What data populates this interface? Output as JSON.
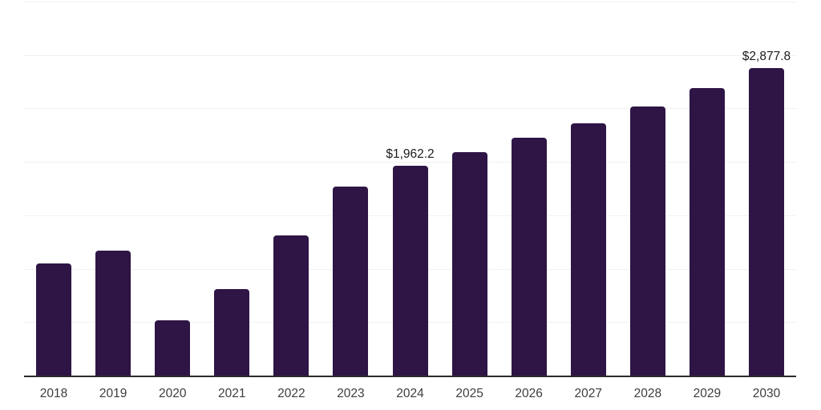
{
  "chart_data": {
    "type": "bar",
    "title": "",
    "xlabel": "",
    "ylabel": "",
    "categories": [
      "2018",
      "2019",
      "2020",
      "2021",
      "2022",
      "2023",
      "2024",
      "2025",
      "2026",
      "2027",
      "2028",
      "2029",
      "2030"
    ],
    "values": [
      1049,
      1170,
      517,
      808,
      1308,
      1771,
      1962.2,
      2088,
      2223,
      2361,
      2518,
      2691,
      2877.8
    ],
    "data_labels": [
      "",
      "",
      "",
      "",
      "",
      "",
      "$1,962.2",
      "",
      "",
      "",
      "",
      "",
      "$2,877.8"
    ],
    "ylim": [
      0,
      3500
    ],
    "gridline_step": 500,
    "grid": "horizontal-only",
    "legend_position": "none",
    "colors": {
      "bar_fill": "#2e1545",
      "data_label_text": "#1c1c1c",
      "tick_label_text": "#3d3d3d",
      "axis_line": "#2b2b2b",
      "gridline": "#f1f1f2",
      "background": "#ffffff"
    }
  }
}
